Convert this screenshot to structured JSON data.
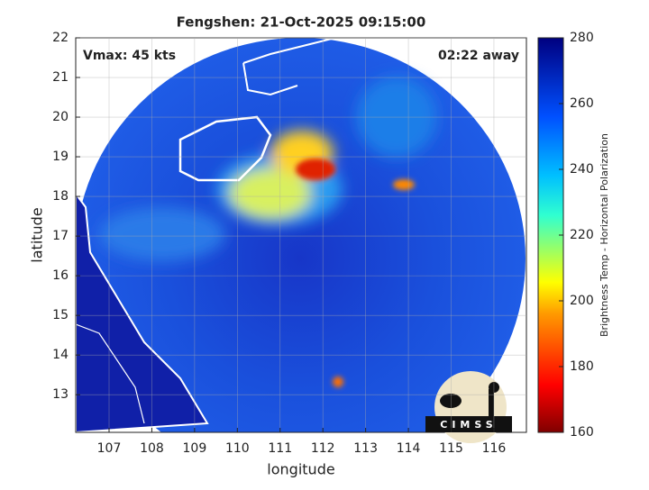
{
  "chart_data": {
    "type": "map",
    "title": "Fengshen: 21-Oct-2025 09:15:00",
    "annotations": [
      "Vmax: 45 kts",
      "02:22 away"
    ],
    "xlabel": "longitude",
    "ylabel": "latitude",
    "xlim": [
      106.22,
      116.76
    ],
    "ylim": [
      12.05,
      22
    ],
    "xticks": [
      107,
      108,
      109,
      110,
      111,
      112,
      113,
      114,
      115,
      116
    ],
    "yticks": [
      13,
      14,
      15,
      16,
      17,
      18,
      19,
      20,
      21,
      22
    ],
    "grid": true,
    "colorbar": {
      "label": "Brightness Temp - Horizontal Polarization",
      "lim": [
        160,
        280
      ],
      "ticks": [
        160,
        180,
        200,
        220,
        240,
        260,
        280
      ]
    },
    "logo": "CIMSS"
  }
}
